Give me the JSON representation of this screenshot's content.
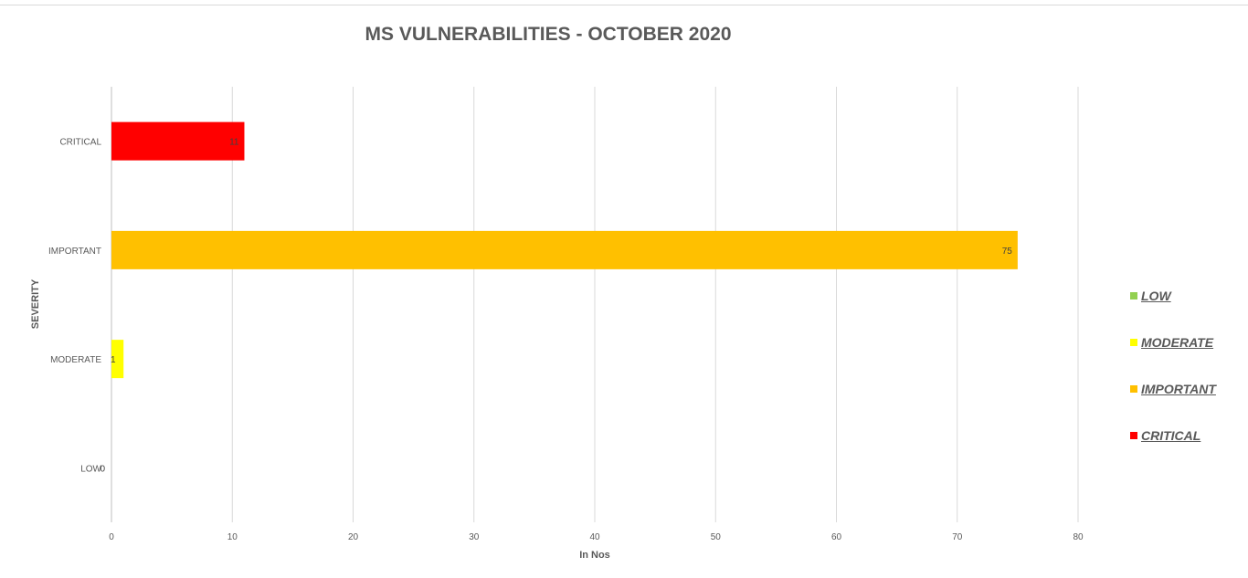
{
  "chart_data": {
    "type": "bar",
    "orientation": "horizontal",
    "title": "MS VULNERABILITIES - OCTOBER 2020",
    "xlabel": "In Nos",
    "ylabel": "SEVERITY",
    "categories": [
      "CRITICAL",
      "IMPORTANT",
      "MODERATE",
      "LOW"
    ],
    "values": [
      11,
      75,
      1,
      0
    ],
    "colors": [
      "#ff0000",
      "#ffc000",
      "#ffff00",
      "#92d050"
    ],
    "xlim": [
      0,
      80
    ],
    "xticks": [
      "0",
      "10",
      "20",
      "30",
      "40",
      "50",
      "60",
      "70",
      "80"
    ],
    "grid": "vertical",
    "legend_position": "right",
    "legend": [
      {
        "label": "LOW",
        "color": "#92d050"
      },
      {
        "label": "MODERATE",
        "color": "#ffff00"
      },
      {
        "label": "IMPORTANT",
        "color": "#ffc000"
      },
      {
        "label": "CRITICAL",
        "color": "#ff0000"
      }
    ]
  }
}
